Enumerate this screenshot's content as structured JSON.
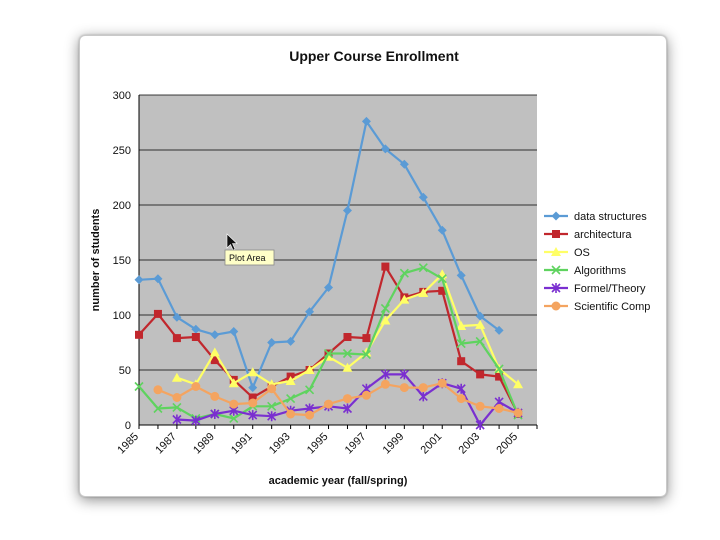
{
  "tooltip": {
    "text": "Plot Area"
  },
  "colors": {
    "plot_area": "#c0c0c0",
    "gridline": "#000000"
  },
  "chart_data": {
    "type": "line",
    "title": "Upper Course Enrollment",
    "xlabel": "academic year (fall/spring)",
    "ylabel": "number of students",
    "xlim": [
      1985,
      2006
    ],
    "ylim": [
      0,
      300
    ],
    "yticks": [
      0,
      50,
      100,
      150,
      200,
      250,
      300
    ],
    "xticks": [
      1985,
      1987,
      1989,
      1991,
      1993,
      1995,
      1997,
      1999,
      2001,
      2003,
      2005
    ],
    "x": [
      1985,
      1986,
      1987,
      1988,
      1989,
      1990,
      1991,
      1992,
      1993,
      1994,
      1995,
      1996,
      1997,
      1998,
      1999,
      2000,
      2001,
      2002,
      2003,
      2004,
      2005,
      2006
    ],
    "grid": "horizontal",
    "legend_position": "right",
    "series": [
      {
        "name": "data structures",
        "color": "#5b9bd5",
        "marker": "diamond",
        "values": [
          132,
          133,
          98,
          87,
          82,
          85,
          34,
          75,
          76,
          103,
          125,
          195,
          276,
          251,
          237,
          207,
          177,
          136,
          99,
          86,
          null,
          null
        ]
      },
      {
        "name": "architectura",
        "color": "#c1272d",
        "marker": "square",
        "values": [
          82,
          101,
          79,
          80,
          59,
          41,
          25,
          35,
          44,
          50,
          65,
          80,
          79,
          144,
          116,
          121,
          122,
          58,
          46,
          44,
          10,
          null
        ]
      },
      {
        "name": "OS",
        "color": "#ffff66",
        "marker": "triangle",
        "values": [
          null,
          null,
          43,
          37,
          66,
          38,
          48,
          37,
          40,
          50,
          62,
          52,
          66,
          95,
          114,
          120,
          137,
          90,
          91,
          51,
          37,
          null
        ]
      },
      {
        "name": "Algorithms",
        "color": "#5fd35f",
        "marker": "x",
        "values": [
          35,
          15,
          16,
          6,
          10,
          6,
          17,
          17,
          24,
          32,
          65,
          65,
          64,
          106,
          138,
          143,
          133,
          74,
          76,
          51,
          9,
          null
        ]
      },
      {
        "name": "Formel/Theory",
        "color": "#7a2fd0",
        "marker": "star",
        "values": [
          null,
          null,
          5,
          4,
          10,
          13,
          9,
          8,
          13,
          15,
          17,
          15,
          33,
          46,
          46,
          26,
          38,
          33,
          0,
          21,
          11,
          null
        ]
      },
      {
        "name": "Scientific Comp",
        "color": "#f4a460",
        "marker": "circle",
        "values": [
          null,
          32,
          25,
          35,
          26,
          19,
          20,
          33,
          10,
          9,
          19,
          24,
          27,
          37,
          34,
          34,
          38,
          24,
          17,
          15,
          11,
          null
        ]
      }
    ]
  }
}
